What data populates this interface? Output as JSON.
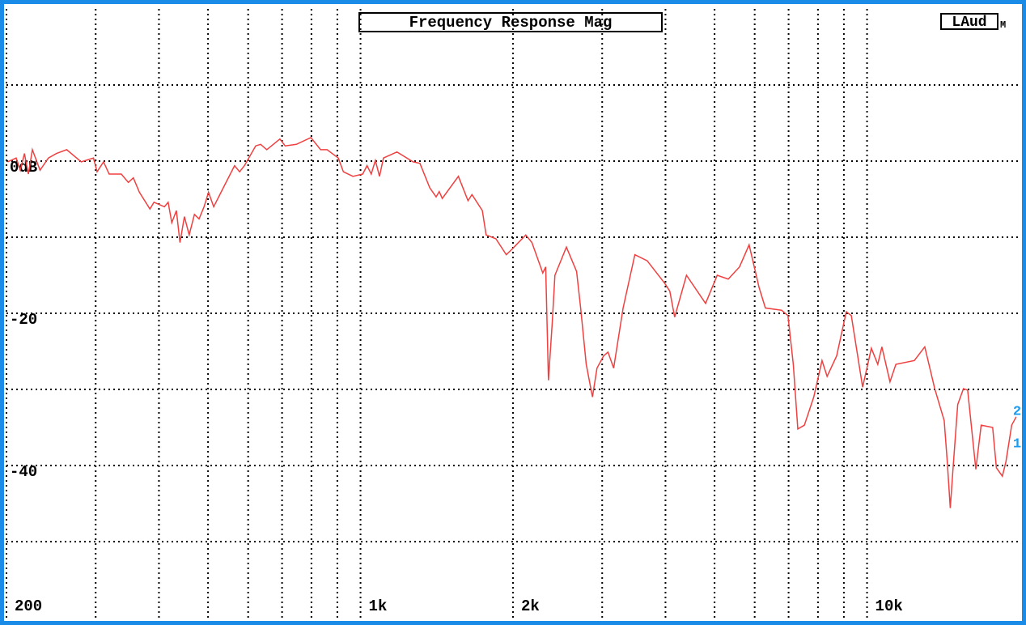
{
  "chart_data": {
    "type": "line",
    "title": "Frequency Response Mag",
    "channel_label": "LAud",
    "channel_suffix": "M",
    "marker_labels": [
      "2",
      "1"
    ],
    "xscale": "log",
    "xlim": [
      200,
      20000
    ],
    "ylim": [
      -60,
      20
    ],
    "xticks": [
      200,
      {
        "value": 1000,
        "label": "1k"
      },
      {
        "value": 2000,
        "label": "2k"
      },
      {
        "value": 10000,
        "label": "10k"
      }
    ],
    "yticks": [
      {
        "value": 0,
        "label": "0dB"
      },
      -20,
      -40
    ],
    "x_gridlines": [
      300,
      400,
      500,
      600,
      700,
      800,
      900,
      3000,
      4000,
      5000,
      6000,
      7000,
      8000,
      9000
    ],
    "y_gridlines": [
      10,
      -10,
      -30,
      -50
    ],
    "grid": true,
    "series": [
      {
        "color": "#f04040",
        "x": [
          201,
          209,
          213,
          217,
          221,
          225,
          233,
          242,
          251,
          263,
          281,
          297,
          302,
          311,
          319,
          337,
          348,
          356,
          366,
          384,
          391,
          410,
          417,
          424,
          433,
          440,
          449,
          459,
          470,
          480,
          491,
          501,
          513,
          536,
          564,
          577,
          590,
          621,
          635,
          653,
          693,
          710,
          747,
          798,
          834,
          859,
          904,
          925,
          966,
          1010,
          1030,
          1050,
          1070,
          1090,
          1110,
          1180,
          1270,
          1310,
          1370,
          1410,
          1430,
          1450,
          1560,
          1630,
          1660,
          1740,
          1770,
          1850,
          1940,
          1990,
          2120,
          2180,
          2290,
          2320,
          2350,
          2390,
          2420,
          2550,
          2670,
          2720,
          2790,
          2870,
          2930,
          3020,
          3080,
          3160,
          3300,
          3480,
          3680,
          3990,
          4080,
          4170,
          4400,
          4800,
          5060,
          5320,
          5600,
          5850,
          6120,
          6300,
          6780,
          6980,
          7150,
          7300,
          7520,
          7850,
          8150,
          8340,
          8710,
          9100,
          9310,
          9800,
          10200,
          10500,
          10700,
          11100,
          11400,
          12400,
          13000,
          13600,
          14200,
          14400,
          14600,
          14800,
          15100,
          15500,
          15800,
          16400,
          16800,
          17700,
          18000,
          18500,
          18800,
          19300,
          19700
        ],
        "values": [
          -0.1,
          0.4,
          -1.2,
          1.0,
          -1.7,
          1.5,
          -1.2,
          0.4,
          1.0,
          1.5,
          -0.1,
          0.4,
          -1.4,
          -0.1,
          -1.7,
          -1.7,
          -2.8,
          -2.2,
          -4.1,
          -6.3,
          -5.4,
          -6.0,
          -5.4,
          -8.1,
          -6.5,
          -10.7,
          -7.3,
          -9.7,
          -7.0,
          -7.6,
          -6.0,
          -4.1,
          -6.0,
          -3.5,
          -0.6,
          -1.4,
          -0.6,
          2.0,
          2.2,
          1.5,
          2.9,
          2.0,
          2.2,
          3.1,
          1.5,
          1.5,
          0.4,
          -1.4,
          -2.0,
          -1.7,
          -0.6,
          -1.7,
          0.1,
          -2.0,
          0.4,
          1.2,
          -0.1,
          -0.3,
          -3.5,
          -4.7,
          -4.0,
          -4.9,
          -2.0,
          -5.2,
          -4.4,
          -6.5,
          -9.7,
          -10.2,
          -12.3,
          -11.6,
          -9.7,
          -10.7,
          -14.7,
          -13.9,
          -28.8,
          -21.4,
          -15.0,
          -11.3,
          -14.5,
          -19.3,
          -26.7,
          -31.0,
          -27.2,
          -25.6,
          -25.1,
          -27.2,
          -19.3,
          -12.3,
          -13.1,
          -16.1,
          -17.1,
          -20.5,
          -15.0,
          -18.7,
          -15.0,
          -15.5,
          -13.9,
          -11.0,
          -16.6,
          -19.3,
          -19.6,
          -20.3,
          -26.7,
          -35.2,
          -34.7,
          -31.0,
          -26.2,
          -28.3,
          -25.6,
          -19.8,
          -20.3,
          -29.7,
          -24.6,
          -26.7,
          -24.4,
          -29.0,
          -26.7,
          -26.2,
          -24.4,
          -29.9,
          -34.1,
          -39.5,
          -45.6,
          -40.0,
          -32.0,
          -29.9,
          -30.1,
          -40.5,
          -34.7,
          -35.0,
          -40.3,
          -41.4,
          -39.5,
          -34.7,
          -33.6
        ]
      }
    ],
    "marker_color": "#1a9cf0",
    "border_color": "#1a8ce8"
  }
}
